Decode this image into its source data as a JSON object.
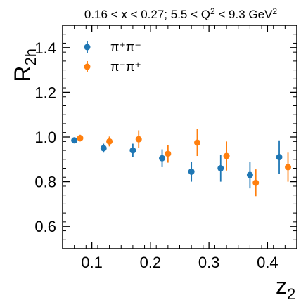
{
  "chart_data": {
    "type": "scatter",
    "title": "0.16 < x < 0.27;  5.5 < Q² < 9.3 GeV²",
    "title_parts": {
      "pre": "0.16 < x < 0.27;  5.5 < Q",
      "sup1": "2",
      "mid": " < 9.3 GeV",
      "sup2": "2"
    },
    "xlabel": "z",
    "xlabel_sub": "2",
    "ylabel": "R",
    "ylabel_sub": "2h",
    "xlim": [
      0.05,
      0.45
    ],
    "ylim": [
      0.5,
      1.5
    ],
    "xticks": [
      0.1,
      0.2,
      0.3,
      0.4
    ],
    "xtick_labels": [
      "0.1",
      "0.2",
      "0.3",
      "0.4"
    ],
    "yticks": [
      0.6,
      0.8,
      1.0,
      1.2,
      1.4
    ],
    "ytick_labels": [
      "0.6",
      "0.8",
      "1.0",
      "1.2",
      "1.4"
    ],
    "grid": false,
    "legend_position": "top-left",
    "series": [
      {
        "name": "π⁺π⁻",
        "color": "#1f77b4",
        "x": [
          0.07,
          0.12,
          0.17,
          0.22,
          0.27,
          0.32,
          0.37,
          0.42
        ],
        "y": [
          0.985,
          0.95,
          0.94,
          0.905,
          0.845,
          0.86,
          0.83,
          0.91
        ],
        "yerr": [
          0.012,
          0.02,
          0.03,
          0.04,
          0.045,
          0.06,
          0.06,
          0.075
        ]
      },
      {
        "name": "π⁻π⁺",
        "color": "#ff7f0e",
        "x": [
          0.08,
          0.13,
          0.18,
          0.23,
          0.28,
          0.33,
          0.38,
          0.435
        ],
        "y": [
          0.995,
          0.98,
          0.99,
          0.925,
          0.975,
          0.915,
          0.795,
          0.865
        ],
        "yerr": [
          0.015,
          0.022,
          0.04,
          0.04,
          0.06,
          0.065,
          0.06,
          0.065
        ]
      }
    ]
  }
}
